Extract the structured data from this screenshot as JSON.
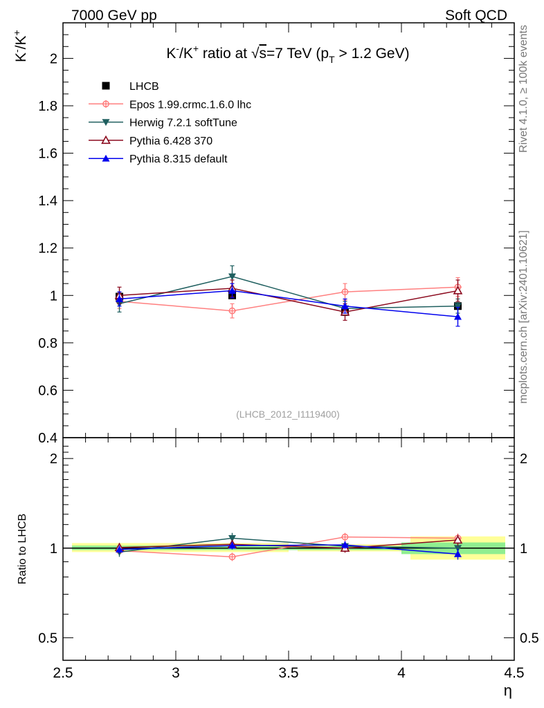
{
  "header": {
    "left_label": "7000 GeV pp",
    "right_label": "Soft QCD"
  },
  "side_labels": {
    "rivet": "Rivet 4.1.0, ≥ 100k events",
    "mcplots": "mcplots.cern.ch [arXiv:2401.10621]"
  },
  "colors": {
    "LHCB": "#000000",
    "Epos": "#ff7f7f",
    "Herwig": "#1f5f5f",
    "Pythia6": "#8b0a1e",
    "Pythia8": "#0000ee",
    "band_outer": "#ffff99",
    "band_inner": "#90ee90"
  },
  "chart_data": [
    {
      "panel": "main",
      "type": "line",
      "title": "K⁻/K⁺ ratio at √s=7 TeV (p_T > 1.2 GeV)",
      "title_parts": {
        "prefix": "K",
        "minus": "-",
        "slash": "/K",
        "plus": "+",
        "middle": " ratio at ",
        "sqrt": "√",
        "s": "s",
        "energy": "=7 TeV (p",
        "sub": "T",
        "cut": " > 1.2 GeV)"
      },
      "ylabel": {
        "k1": "K",
        "minus": "-",
        "slash": "/K",
        "plus": "+"
      },
      "xlabel": "η",
      "xlim": [
        2.5,
        4.5
      ],
      "ylim": [
        0.4,
        2.15
      ],
      "yticks": [
        0.4,
        0.6,
        0.8,
        1.0,
        1.2,
        1.4,
        1.6,
        1.8,
        2.0
      ],
      "ytick_labels": [
        "0.4",
        "0.6",
        "0.8",
        "1",
        "1.2",
        "1.4",
        "1.6",
        "1.8",
        "2"
      ],
      "x": [
        2.75,
        3.25,
        3.75,
        4.25
      ],
      "watermark": "(LHCB_2012_I1119400)",
      "series": [
        {
          "name": "LHCB",
          "key": "LHCB",
          "marker": "square",
          "values": [
            0.995,
            1.0,
            0.93,
            0.955
          ],
          "err": [
            0.008,
            0.008,
            0.012,
            0.01
          ],
          "line": false
        },
        {
          "name": "Epos 1.99.crmc.1.6.0 lhc",
          "key": "Epos",
          "marker": "open-circle",
          "values": [
            0.975,
            0.935,
            1.015,
            1.035
          ],
          "err": [
            0.03,
            0.03,
            0.035,
            0.04
          ],
          "line": true
        },
        {
          "name": "Herwig 7.2.1 softTune",
          "key": "Herwig",
          "marker": "triangle-down",
          "values": [
            0.965,
            1.08,
            0.945,
            0.955
          ],
          "err": [
            0.035,
            0.045,
            0.03,
            0.03
          ],
          "line": true
        },
        {
          "name": "Pythia 6.428 370",
          "key": "Pythia6",
          "marker": "open-triangle-up",
          "values": [
            1.0,
            1.03,
            0.93,
            1.02
          ],
          "err": [
            0.035,
            0.035,
            0.035,
            0.045
          ],
          "line": true
        },
        {
          "name": "Pythia 8.315 default",
          "key": "Pythia8",
          "marker": "triangle-up",
          "values": [
            0.985,
            1.02,
            0.955,
            0.91
          ],
          "err": [
            0.03,
            0.03,
            0.03,
            0.04
          ],
          "line": true
        }
      ]
    },
    {
      "panel": "ratio",
      "type": "line",
      "ylabel": "Ratio to LHCB",
      "xlabel": "η",
      "xlim": [
        2.5,
        4.5
      ],
      "ylim": [
        0.42,
        2.35
      ],
      "yscale": "log",
      "yticks": [
        0.5,
        1,
        2
      ],
      "ytick_labels": [
        "0.5",
        "1",
        "2"
      ],
      "xticks": [
        2.5,
        3,
        3.5,
        4,
        4.5
      ],
      "xtick_labels": [
        "2.5",
        "3",
        "3.5",
        "4",
        "4.5"
      ],
      "x": [
        2.75,
        3.25,
        3.75,
        4.25
      ],
      "bands": [
        {
          "x0": 2.5,
          "x1": 3.5,
          "outer": [
            0.97,
            1.04
          ],
          "inner": [
            0.985,
            1.02
          ]
        },
        {
          "x0": 3.5,
          "x1": 4.0,
          "outer": [
            0.975,
            1.03
          ],
          "inner": [
            0.985,
            1.015
          ]
        },
        {
          "x0": 4.0,
          "x1": 4.5,
          "outer": [
            0.915,
            1.095
          ],
          "inner": [
            0.955,
            1.045
          ]
        }
      ],
      "series": [
        {
          "name": "Epos 1.99.crmc.1.6.0 lhc",
          "key": "Epos",
          "marker": "open-circle",
          "values": [
            0.98,
            0.935,
            1.09,
            1.08
          ],
          "err": [
            0.03,
            0.03,
            0.035,
            0.04
          ]
        },
        {
          "name": "Herwig 7.2.1 softTune",
          "key": "Herwig",
          "marker": "triangle-down",
          "values": [
            0.97,
            1.08,
            1.015,
            1.0
          ],
          "err": [
            0.035,
            0.045,
            0.03,
            0.03
          ]
        },
        {
          "name": "Pythia 6.428 370",
          "key": "Pythia6",
          "marker": "open-triangle-up",
          "values": [
            1.005,
            1.03,
            1.0,
            1.065
          ],
          "err": [
            0.035,
            0.035,
            0.035,
            0.045
          ]
        },
        {
          "name": "Pythia 8.315 default",
          "key": "Pythia8",
          "marker": "triangle-up",
          "values": [
            0.99,
            1.02,
            1.025,
            0.955
          ],
          "err": [
            0.03,
            0.03,
            0.03,
            0.04
          ]
        }
      ]
    }
  ]
}
